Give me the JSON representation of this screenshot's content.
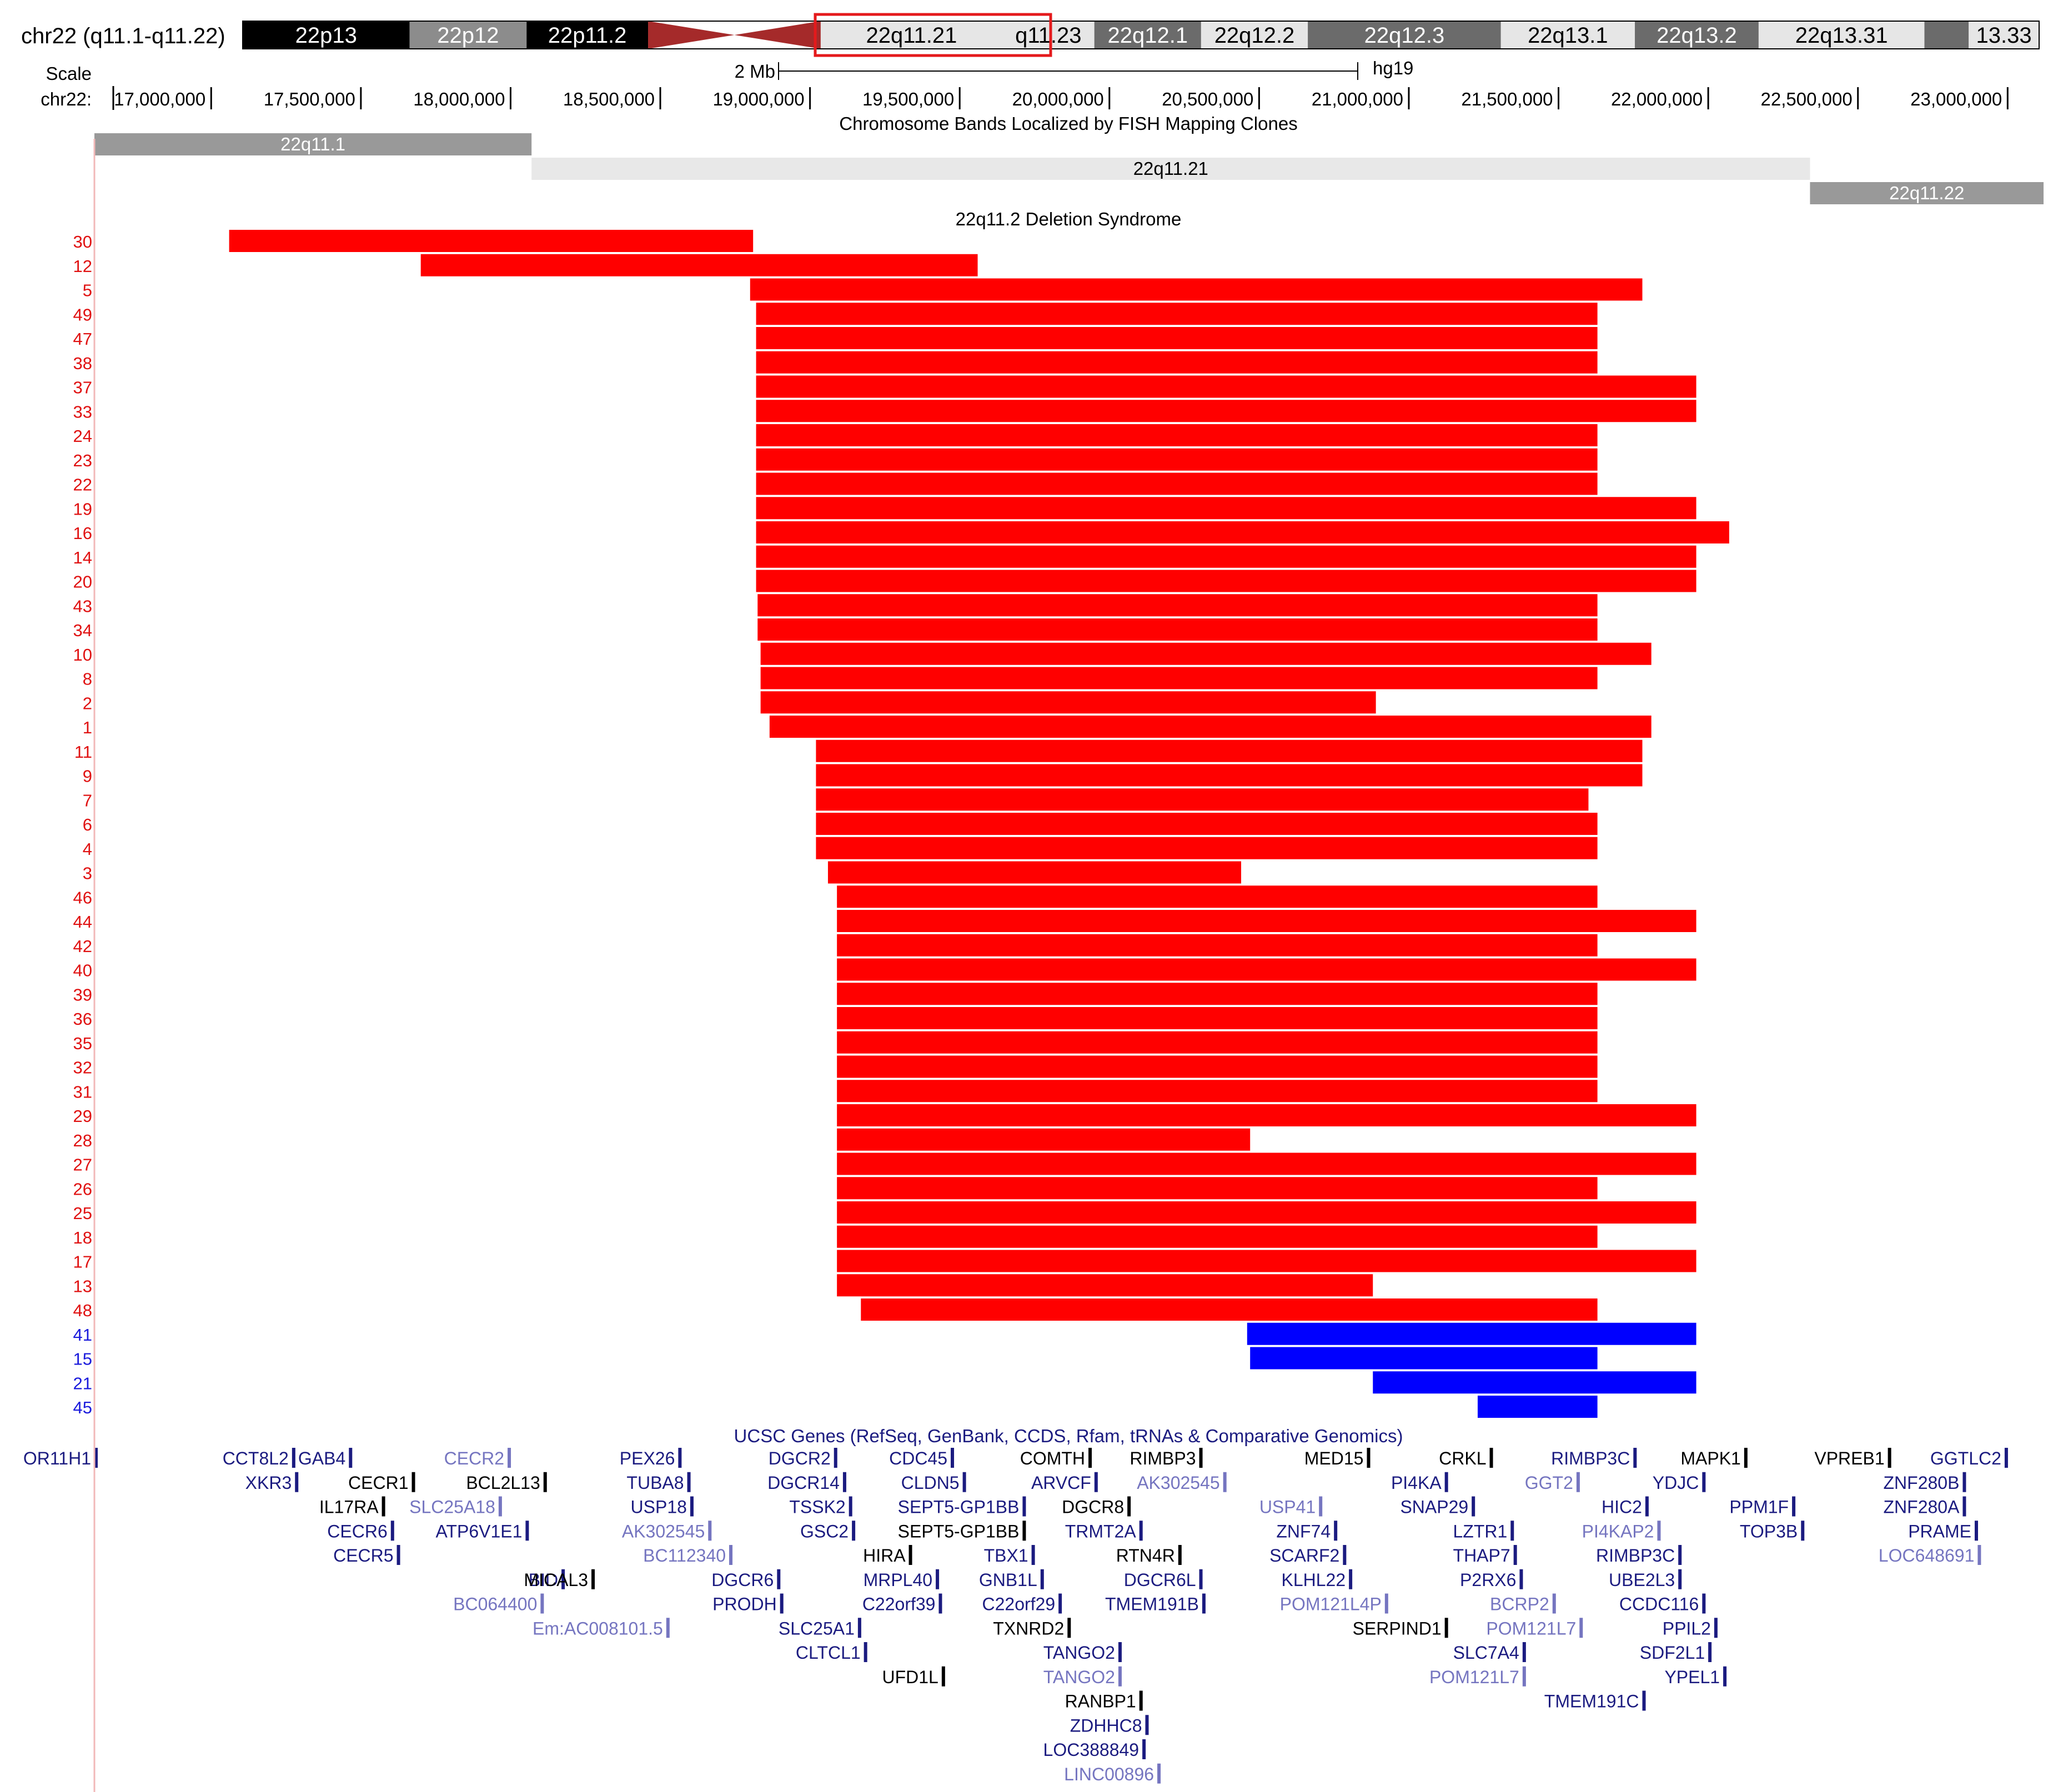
{
  "header": {
    "position_label": "chr22 (q11.1-q11.22)",
    "scale_label": "Scale",
    "chrom_label": "chr22:",
    "scale_bar_text": "2 Mb",
    "assembly": "hg19"
  },
  "colors": {
    "deletion_red": "#ff0000",
    "deletion_blue": "#0000ff",
    "row_label_red": "#e01010",
    "row_label_blue": "#1a1adc",
    "gene_navy": "#1b1b80",
    "gene_light": "#7575c0",
    "gene_black": "#000000",
    "highlight_box": "#e41a1c",
    "centromere": "#a52a2a",
    "band_light": "#e6e6e6",
    "band_grey": "#8c8c8c"
  },
  "ideogram": {
    "bands": [
      {
        "label": "22p13",
        "start": 0,
        "end": 14.7,
        "shade": "black"
      },
      {
        "label": "22p12",
        "start": 14.7,
        "end": 25.0,
        "shade": "grey"
      },
      {
        "label": "22p11.2",
        "start": 25.0,
        "end": 35.7,
        "shade": "black"
      },
      {
        "label": "22q11.21",
        "start": 50.9,
        "end": 66.9,
        "shade": "light"
      },
      {
        "label": "q11.23",
        "start": 66.9,
        "end": 75.0,
        "shade": "light"
      },
      {
        "label": "22q12.1",
        "start": 75.0,
        "end": 84.4,
        "shade": "dark"
      },
      {
        "label": "22q12.2",
        "start": 84.4,
        "end": 93.8,
        "shade": "light"
      },
      {
        "label": "22q12.3",
        "start": 93.8,
        "end": 110.8,
        "shade": "dark"
      },
      {
        "label": "22q13.1",
        "start": 110.8,
        "end": 122.6,
        "shade": "light"
      },
      {
        "label": "22q13.2",
        "start": 122.6,
        "end": 133.5,
        "shade": "dark"
      },
      {
        "label": "22q13.31",
        "start": 133.5,
        "end": 148.1,
        "shade": "light"
      },
      {
        "label": "",
        "start": 148.1,
        "end": 152.0,
        "shade": "dark"
      },
      {
        "label": "13.33",
        "start": 152.0,
        "end": 158.2,
        "shade": "light"
      }
    ]
  },
  "axis": {
    "ticks": [
      "17,000,000",
      "17,500,000",
      "18,000,000",
      "18,500,000",
      "19,000,000",
      "19,500,000",
      "20,000,000",
      "20,500,000",
      "21,000,000",
      "21,500,000",
      "22,000,000",
      "22,500,000",
      "23,000,000"
    ],
    "tick_values": [
      17000000,
      17500000,
      18000000,
      18500000,
      19000000,
      19500000,
      20000000,
      20500000,
      21000000,
      21500000,
      22000000,
      22500000,
      23000000
    ],
    "view_start": 16610000,
    "view_end": 23120000
  },
  "fish_track": {
    "title": "Chromosome Bands Localized by FISH Mapping Clones",
    "bands": [
      {
        "label": "22q11.1",
        "start": 16610000,
        "end": 18070000,
        "shade": "grey"
      },
      {
        "label": "22q11.21",
        "start": 18070000,
        "end": 22340000,
        "shade": "light"
      },
      {
        "label": "22q11.22",
        "start": 22340000,
        "end": 23120000,
        "shade": "grey"
      }
    ]
  },
  "chart_data": {
    "type": "bar",
    "title": "22q11.2 Deletion Syndrome",
    "xlabel": "chr22",
    "xlim": [
      16610000,
      23120000
    ],
    "series": [
      {
        "name": "30",
        "start": 17060000,
        "end": 18810000,
        "color": "red"
      },
      {
        "name": "12",
        "start": 17700000,
        "end": 19560000,
        "color": "red"
      },
      {
        "name": "5",
        "start": 18800000,
        "end": 21780000,
        "color": "red"
      },
      {
        "name": "49",
        "start": 18820000,
        "end": 21630000,
        "color": "red"
      },
      {
        "name": "47",
        "start": 18820000,
        "end": 21630000,
        "color": "red"
      },
      {
        "name": "38",
        "start": 18820000,
        "end": 21630000,
        "color": "red"
      },
      {
        "name": "37",
        "start": 18820000,
        "end": 21960000,
        "color": "red"
      },
      {
        "name": "33",
        "start": 18820000,
        "end": 21960000,
        "color": "red"
      },
      {
        "name": "24",
        "start": 18820000,
        "end": 21630000,
        "color": "red"
      },
      {
        "name": "23",
        "start": 18820000,
        "end": 21630000,
        "color": "red"
      },
      {
        "name": "22",
        "start": 18820000,
        "end": 21630000,
        "color": "red"
      },
      {
        "name": "19",
        "start": 18820000,
        "end": 21960000,
        "color": "red"
      },
      {
        "name": "16",
        "start": 18820000,
        "end": 22070000,
        "color": "red"
      },
      {
        "name": "14",
        "start": 18820000,
        "end": 21960000,
        "color": "red"
      },
      {
        "name": "20",
        "start": 18820000,
        "end": 21960000,
        "color": "red"
      },
      {
        "name": "43",
        "start": 18825000,
        "end": 21630000,
        "color": "red"
      },
      {
        "name": "34",
        "start": 18825000,
        "end": 21630000,
        "color": "red"
      },
      {
        "name": "10",
        "start": 18835000,
        "end": 21810000,
        "color": "red"
      },
      {
        "name": "8",
        "start": 18835000,
        "end": 21630000,
        "color": "red"
      },
      {
        "name": "2",
        "start": 18835000,
        "end": 20890000,
        "color": "red"
      },
      {
        "name": "1",
        "start": 18865000,
        "end": 21810000,
        "color": "red"
      },
      {
        "name": "11",
        "start": 19020000,
        "end": 21780000,
        "color": "red"
      },
      {
        "name": "9",
        "start": 19020000,
        "end": 21780000,
        "color": "red"
      },
      {
        "name": "7",
        "start": 19020000,
        "end": 21600000,
        "color": "red"
      },
      {
        "name": "6",
        "start": 19020000,
        "end": 21630000,
        "color": "red"
      },
      {
        "name": "4",
        "start": 19020000,
        "end": 21630000,
        "color": "red"
      },
      {
        "name": "3",
        "start": 19060000,
        "end": 20440000,
        "color": "red"
      },
      {
        "name": "46",
        "start": 19090000,
        "end": 21630000,
        "color": "red"
      },
      {
        "name": "44",
        "start": 19090000,
        "end": 21960000,
        "color": "red"
      },
      {
        "name": "42",
        "start": 19090000,
        "end": 21630000,
        "color": "red"
      },
      {
        "name": "40",
        "start": 19090000,
        "end": 21960000,
        "color": "red"
      },
      {
        "name": "39",
        "start": 19090000,
        "end": 21630000,
        "color": "red"
      },
      {
        "name": "36",
        "start": 19090000,
        "end": 21630000,
        "color": "red"
      },
      {
        "name": "35",
        "start": 19090000,
        "end": 21630000,
        "color": "red"
      },
      {
        "name": "32",
        "start": 19090000,
        "end": 21630000,
        "color": "red"
      },
      {
        "name": "31",
        "start": 19090000,
        "end": 21630000,
        "color": "red"
      },
      {
        "name": "29",
        "start": 19090000,
        "end": 21960000,
        "color": "red"
      },
      {
        "name": "28",
        "start": 19090000,
        "end": 20470000,
        "color": "red"
      },
      {
        "name": "27",
        "start": 19090000,
        "end": 21960000,
        "color": "red"
      },
      {
        "name": "26",
        "start": 19090000,
        "end": 21630000,
        "color": "red"
      },
      {
        "name": "25",
        "start": 19090000,
        "end": 21960000,
        "color": "red"
      },
      {
        "name": "18",
        "start": 19090000,
        "end": 21630000,
        "color": "red"
      },
      {
        "name": "17",
        "start": 19090000,
        "end": 21960000,
        "color": "red"
      },
      {
        "name": "13",
        "start": 19090000,
        "end": 20880000,
        "color": "red"
      },
      {
        "name": "48",
        "start": 19170000,
        "end": 21630000,
        "color": "red"
      },
      {
        "name": "41",
        "start": 20460000,
        "end": 21960000,
        "color": "blue"
      },
      {
        "name": "15",
        "start": 20470000,
        "end": 21630000,
        "color": "blue"
      },
      {
        "name": "21",
        "start": 20880000,
        "end": 21960000,
        "color": "blue"
      },
      {
        "name": "45",
        "start": 21230000,
        "end": 21630000,
        "color": "blue"
      }
    ]
  },
  "genes": {
    "title": "UCSC Genes (RefSeq, GenBank, CCDS, Rfam, tRNAs & Comparative Genomics)",
    "items": [
      {
        "name": "OR11H1",
        "pos": 16610000,
        "row": 0,
        "tone": "navy"
      },
      {
        "name": "CCT8L2",
        "pos": 17270000,
        "row": 0,
        "tone": "navy"
      },
      {
        "name": "GAB4",
        "pos": 17460000,
        "row": 0,
        "tone": "navy"
      },
      {
        "name": "CECR2",
        "pos": 17990000,
        "row": 0,
        "tone": "light"
      },
      {
        "name": "PEX26",
        "pos": 18560000,
        "row": 0,
        "tone": "navy"
      },
      {
        "name": "DGCR2",
        "pos": 19080000,
        "row": 0,
        "tone": "navy"
      },
      {
        "name": "CDC45",
        "pos": 19470000,
        "row": 0,
        "tone": "navy"
      },
      {
        "name": "COMTH",
        "pos": 19930000,
        "row": 0,
        "tone": "black"
      },
      {
        "name": "RIMBP3",
        "pos": 20300000,
        "row": 0,
        "tone": "black"
      },
      {
        "name": "MED15",
        "pos": 20860000,
        "row": 0,
        "tone": "black"
      },
      {
        "name": "CRKL",
        "pos": 21270000,
        "row": 0,
        "tone": "black"
      },
      {
        "name": "RIMBP3C",
        "pos": 21750000,
        "row": 0,
        "tone": "navy"
      },
      {
        "name": "MAPK1",
        "pos": 22120000,
        "row": 0,
        "tone": "black"
      },
      {
        "name": "VPREB1",
        "pos": 22600000,
        "row": 0,
        "tone": "black"
      },
      {
        "name": "GGTLC2",
        "pos": 22990000,
        "row": 0,
        "tone": "navy"
      },
      {
        "name": "XKR3",
        "pos": 17280000,
        "row": 1,
        "tone": "navy"
      },
      {
        "name": "CECR1",
        "pos": 17670000,
        "row": 1,
        "tone": "black"
      },
      {
        "name": "BCL2L13",
        "pos": 18110000,
        "row": 1,
        "tone": "black"
      },
      {
        "name": "TUBA8",
        "pos": 18590000,
        "row": 1,
        "tone": "navy"
      },
      {
        "name": "DGCR14",
        "pos": 19110000,
        "row": 1,
        "tone": "navy"
      },
      {
        "name": "CLDN5",
        "pos": 19510000,
        "row": 1,
        "tone": "navy"
      },
      {
        "name": "ARVCF",
        "pos": 19950000,
        "row": 1,
        "tone": "navy"
      },
      {
        "name": "AK302545",
        "pos": 20380000,
        "row": 1,
        "tone": "light"
      },
      {
        "name": "PI4KA",
        "pos": 21120000,
        "row": 1,
        "tone": "navy"
      },
      {
        "name": "GGT2",
        "pos": 21560000,
        "row": 1,
        "tone": "light"
      },
      {
        "name": "YDJC",
        "pos": 21980000,
        "row": 1,
        "tone": "navy"
      },
      {
        "name": "ZNF280B",
        "pos": 22850000,
        "row": 1,
        "tone": "navy"
      },
      {
        "name": "IL17RA",
        "pos": 17570000,
        "row": 2,
        "tone": "black"
      },
      {
        "name": "SLC25A18",
        "pos": 17960000,
        "row": 2,
        "tone": "light"
      },
      {
        "name": "USP18",
        "pos": 18600000,
        "row": 2,
        "tone": "navy"
      },
      {
        "name": "TSSK2",
        "pos": 19130000,
        "row": 2,
        "tone": "navy"
      },
      {
        "name": "SEPT5-GP1BB",
        "pos": 19710000,
        "row": 2,
        "tone": "navy"
      },
      {
        "name": "DGCR8",
        "pos": 20060000,
        "row": 2,
        "tone": "black"
      },
      {
        "name": "USP41",
        "pos": 20700000,
        "row": 2,
        "tone": "light"
      },
      {
        "name": "SNAP29",
        "pos": 21210000,
        "row": 2,
        "tone": "navy"
      },
      {
        "name": "HIC2",
        "pos": 21790000,
        "row": 2,
        "tone": "navy"
      },
      {
        "name": "PPM1F",
        "pos": 22280000,
        "row": 2,
        "tone": "navy"
      },
      {
        "name": "ZNF280A",
        "pos": 22850000,
        "row": 2,
        "tone": "navy"
      },
      {
        "name": "CECR6",
        "pos": 17600000,
        "row": 3,
        "tone": "navy"
      },
      {
        "name": "ATP6V1E1",
        "pos": 18050000,
        "row": 3,
        "tone": "navy"
      },
      {
        "name": "AK302545",
        "pos": 18660000,
        "row": 3,
        "tone": "light"
      },
      {
        "name": "GSC2",
        "pos": 19140000,
        "row": 3,
        "tone": "navy"
      },
      {
        "name": "SEPT5-GP1BB",
        "pos": 19710000,
        "row": 3,
        "tone": "black"
      },
      {
        "name": "TRMT2A",
        "pos": 20100000,
        "row": 3,
        "tone": "navy"
      },
      {
        "name": "ZNF74",
        "pos": 20750000,
        "row": 3,
        "tone": "navy"
      },
      {
        "name": "LZTR1",
        "pos": 21340000,
        "row": 3,
        "tone": "navy"
      },
      {
        "name": "PI4KAP2",
        "pos": 21830000,
        "row": 3,
        "tone": "light"
      },
      {
        "name": "TOP3B",
        "pos": 22310000,
        "row": 3,
        "tone": "navy"
      },
      {
        "name": "PRAME",
        "pos": 22890000,
        "row": 3,
        "tone": "navy"
      },
      {
        "name": "CECR5",
        "pos": 17620000,
        "row": 4,
        "tone": "navy"
      },
      {
        "name": "BC112340",
        "pos": 18730000,
        "row": 4,
        "tone": "light"
      },
      {
        "name": "HIRA",
        "pos": 19330000,
        "row": 4,
        "tone": "black"
      },
      {
        "name": "TBX1",
        "pos": 19740000,
        "row": 4,
        "tone": "navy"
      },
      {
        "name": "RTN4R",
        "pos": 20230000,
        "row": 4,
        "tone": "black"
      },
      {
        "name": "SCARF2",
        "pos": 20780000,
        "row": 4,
        "tone": "navy"
      },
      {
        "name": "THAP7",
        "pos": 21350000,
        "row": 4,
        "tone": "navy"
      },
      {
        "name": "RIMBP3C",
        "pos": 21900000,
        "row": 4,
        "tone": "navy"
      },
      {
        "name": "LOC648691",
        "pos": 22900000,
        "row": 4,
        "tone": "light"
      },
      {
        "name": "BID",
        "pos": 18170000,
        "row": 5,
        "tone": "navy"
      },
      {
        "name": "MICAL3",
        "pos": 18270000,
        "row": 5,
        "tone": "black"
      },
      {
        "name": "DGCR6",
        "pos": 18890000,
        "row": 5,
        "tone": "navy"
      },
      {
        "name": "MRPL40",
        "pos": 19420000,
        "row": 5,
        "tone": "navy"
      },
      {
        "name": "GNB1L",
        "pos": 19770000,
        "row": 5,
        "tone": "navy"
      },
      {
        "name": "DGCR6L",
        "pos": 20300000,
        "row": 5,
        "tone": "navy"
      },
      {
        "name": "KLHL22",
        "pos": 20800000,
        "row": 5,
        "tone": "navy"
      },
      {
        "name": "P2RX6",
        "pos": 21370000,
        "row": 5,
        "tone": "navy"
      },
      {
        "name": "UBE2L3",
        "pos": 21900000,
        "row": 5,
        "tone": "navy"
      },
      {
        "name": "BC064400",
        "pos": 18100000,
        "row": 6,
        "tone": "light"
      },
      {
        "name": "PRODH",
        "pos": 18900000,
        "row": 6,
        "tone": "navy"
      },
      {
        "name": "C22orf39",
        "pos": 19430000,
        "row": 6,
        "tone": "navy"
      },
      {
        "name": "C22orf29",
        "pos": 19830000,
        "row": 6,
        "tone": "navy"
      },
      {
        "name": "TMEM191B",
        "pos": 20310000,
        "row": 6,
        "tone": "navy"
      },
      {
        "name": "POM121L4P",
        "pos": 20920000,
        "row": 6,
        "tone": "light"
      },
      {
        "name": "BCRP2",
        "pos": 21480000,
        "row": 6,
        "tone": "light"
      },
      {
        "name": "CCDC116",
        "pos": 21980000,
        "row": 6,
        "tone": "navy"
      },
      {
        "name": "Em:AC008101.5",
        "pos": 18520000,
        "row": 7,
        "tone": "light"
      },
      {
        "name": "SLC25A1",
        "pos": 19160000,
        "row": 7,
        "tone": "navy"
      },
      {
        "name": "TXNRD2",
        "pos": 19860000,
        "row": 7,
        "tone": "black"
      },
      {
        "name": "SERPIND1",
        "pos": 21120000,
        "row": 7,
        "tone": "black"
      },
      {
        "name": "POM121L7",
        "pos": 21570000,
        "row": 7,
        "tone": "light"
      },
      {
        "name": "PPIL2",
        "pos": 22020000,
        "row": 7,
        "tone": "navy"
      },
      {
        "name": "CLTCL1",
        "pos": 19180000,
        "row": 8,
        "tone": "navy"
      },
      {
        "name": "TANGO2",
        "pos": 20030000,
        "row": 8,
        "tone": "navy"
      },
      {
        "name": "SLC7A4",
        "pos": 21380000,
        "row": 8,
        "tone": "navy"
      },
      {
        "name": "SDF2L1",
        "pos": 22000000,
        "row": 8,
        "tone": "navy"
      },
      {
        "name": "UFD1L",
        "pos": 19440000,
        "row": 9,
        "tone": "black"
      },
      {
        "name": "TANGO2",
        "pos": 20030000,
        "row": 9,
        "tone": "light"
      },
      {
        "name": "POM121L7",
        "pos": 21380000,
        "row": 9,
        "tone": "light"
      },
      {
        "name": "YPEL1",
        "pos": 22050000,
        "row": 9,
        "tone": "navy"
      },
      {
        "name": "RANBP1",
        "pos": 20100000,
        "row": 10,
        "tone": "black"
      },
      {
        "name": "TMEM191C",
        "pos": 21780000,
        "row": 10,
        "tone": "navy"
      },
      {
        "name": "ZDHHC8",
        "pos": 20120000,
        "row": 11,
        "tone": "navy"
      },
      {
        "name": "LOC388849",
        "pos": 20110000,
        "row": 12,
        "tone": "navy"
      },
      {
        "name": "LINC00896",
        "pos": 20160000,
        "row": 13,
        "tone": "light"
      }
    ]
  }
}
